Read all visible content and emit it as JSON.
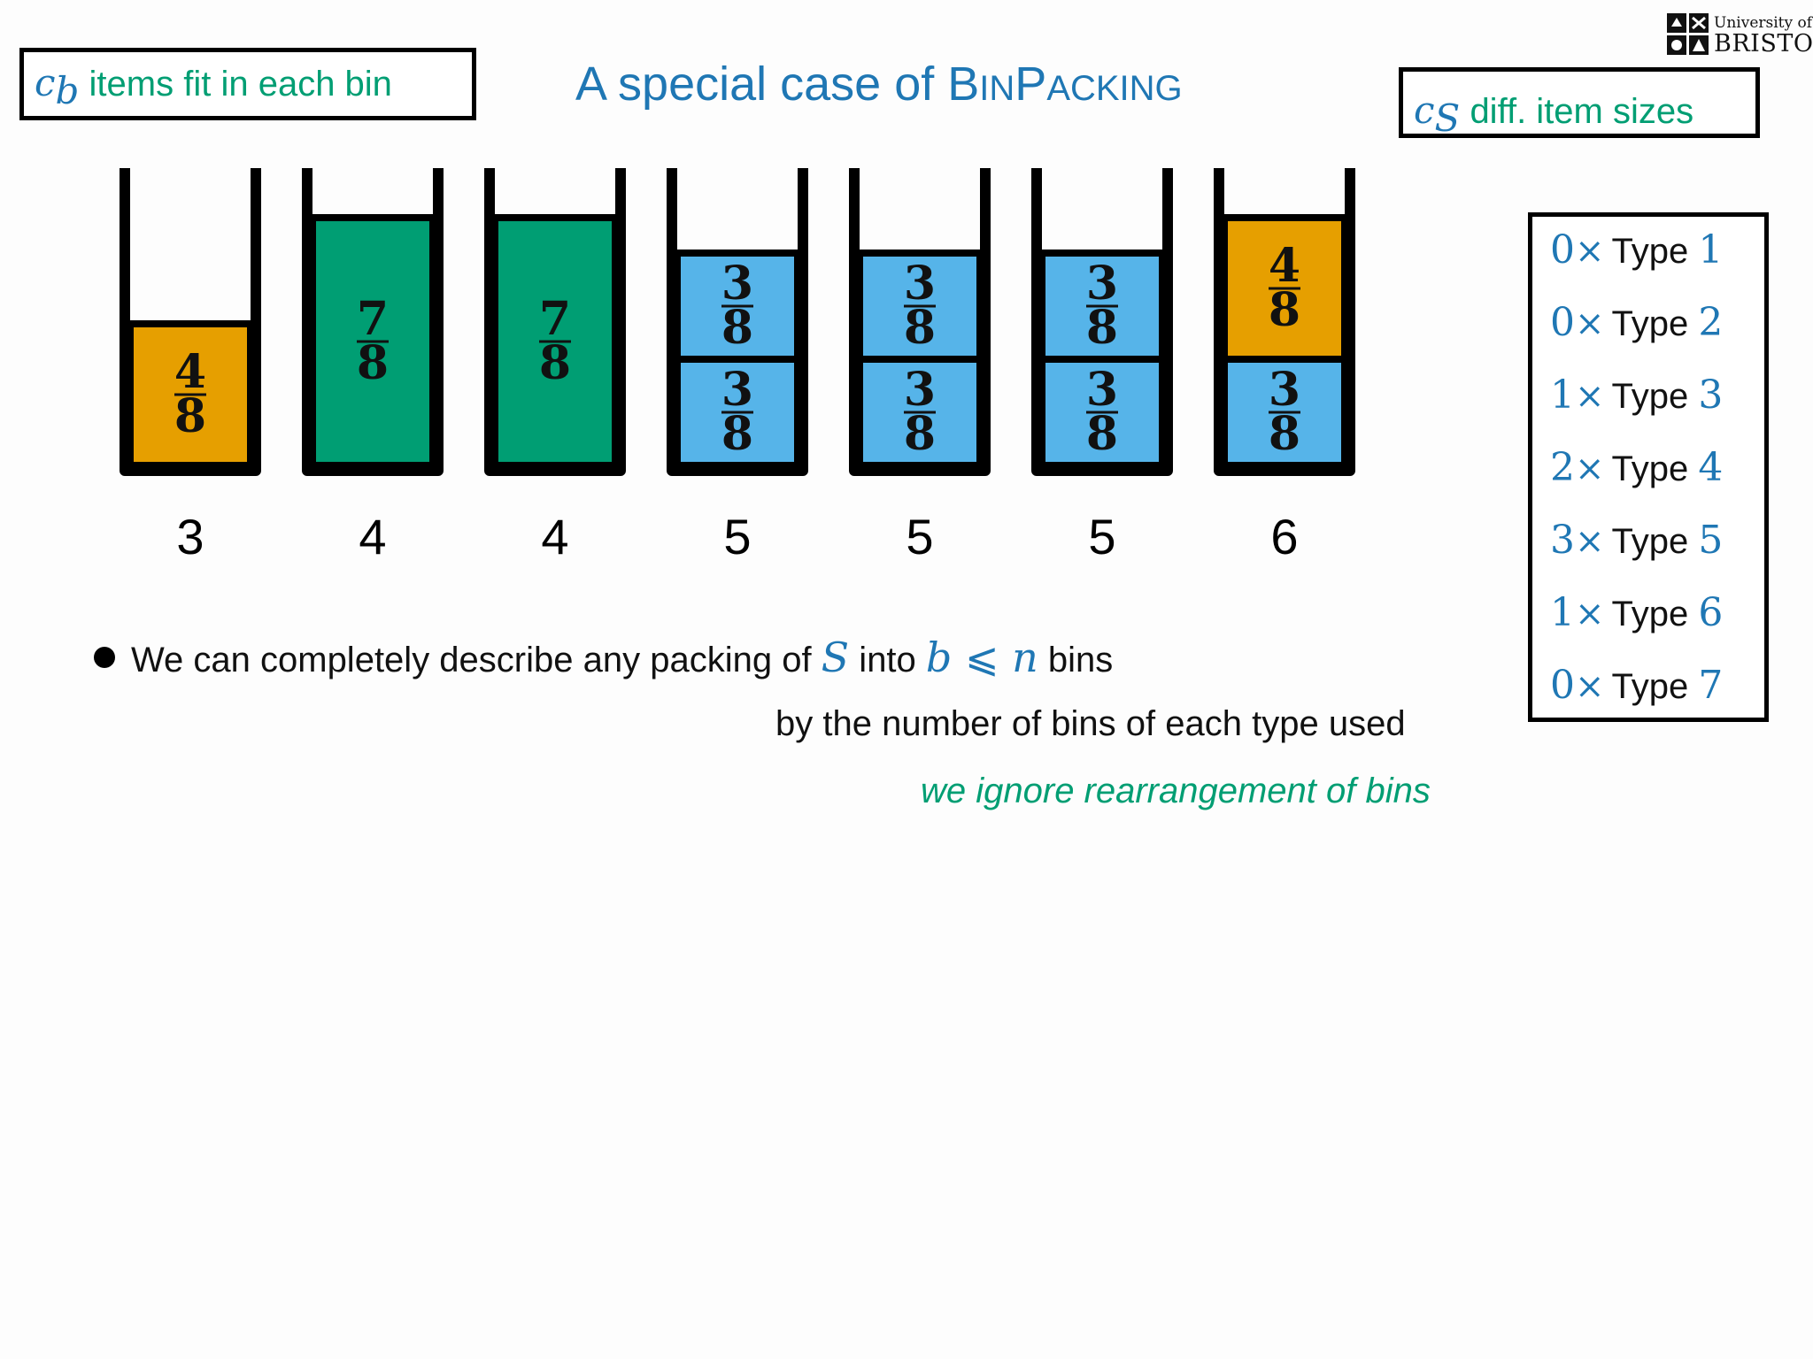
{
  "title": {
    "prefix": "A special case of ",
    "b1": "B",
    "s1": "IN",
    "b2": "P",
    "s2": "ACKING"
  },
  "callout_cb": {
    "var": "c",
    "sub": "b",
    "text": "items fit in each bin"
  },
  "callout_cs": {
    "var": "c",
    "sub": "S",
    "text": "diff. item sizes"
  },
  "logo": {
    "line1": "University of",
    "line2": "BRISTOL"
  },
  "colors": {
    "orange": "#e69f00",
    "green": "#009e73",
    "blue": "#56b4e9",
    "accent": "#1f77b4"
  },
  "bins": [
    {
      "label": "3",
      "items": [
        {
          "num": "4",
          "den": "8",
          "color": "orange"
        }
      ]
    },
    {
      "label": "4",
      "items": [
        {
          "num": "7",
          "den": "8",
          "color": "green"
        }
      ]
    },
    {
      "label": "4",
      "items": [
        {
          "num": "7",
          "den": "8",
          "color": "green"
        }
      ]
    },
    {
      "label": "5",
      "items": [
        {
          "num": "3",
          "den": "8",
          "color": "blue"
        },
        {
          "num": "3",
          "den": "8",
          "color": "blue"
        }
      ]
    },
    {
      "label": "5",
      "items": [
        {
          "num": "3",
          "den": "8",
          "color": "blue"
        },
        {
          "num": "3",
          "den": "8",
          "color": "blue"
        }
      ]
    },
    {
      "label": "5",
      "items": [
        {
          "num": "3",
          "den": "8",
          "color": "blue"
        },
        {
          "num": "3",
          "den": "8",
          "color": "blue"
        }
      ]
    },
    {
      "label": "6",
      "items": [
        {
          "num": "3",
          "den": "8",
          "color": "blue"
        },
        {
          "num": "4",
          "den": "8",
          "color": "orange"
        }
      ]
    }
  ],
  "types": [
    {
      "count": "0",
      "times": "×",
      "word": "Type",
      "type": "1"
    },
    {
      "count": "0",
      "times": "×",
      "word": "Type",
      "type": "2"
    },
    {
      "count": "1",
      "times": "×",
      "word": "Type",
      "type": "3"
    },
    {
      "count": "2",
      "times": "×",
      "word": "Type",
      "type": "4"
    },
    {
      "count": "3",
      "times": "×",
      "word": "Type",
      "type": "5"
    },
    {
      "count": "1",
      "times": "×",
      "word": "Type",
      "type": "6"
    },
    {
      "count": "0",
      "times": "×",
      "word": "Type",
      "type": "7"
    }
  ],
  "bullet": {
    "part1": "We can completely describe any packing of ",
    "S": "S",
    "part2": " into ",
    "b": "b",
    "leq": " ⩽ ",
    "n": "n",
    "part3": " bins"
  },
  "line2": "by the number of bins of each type used",
  "line3": "we ignore rearrangement of bins"
}
